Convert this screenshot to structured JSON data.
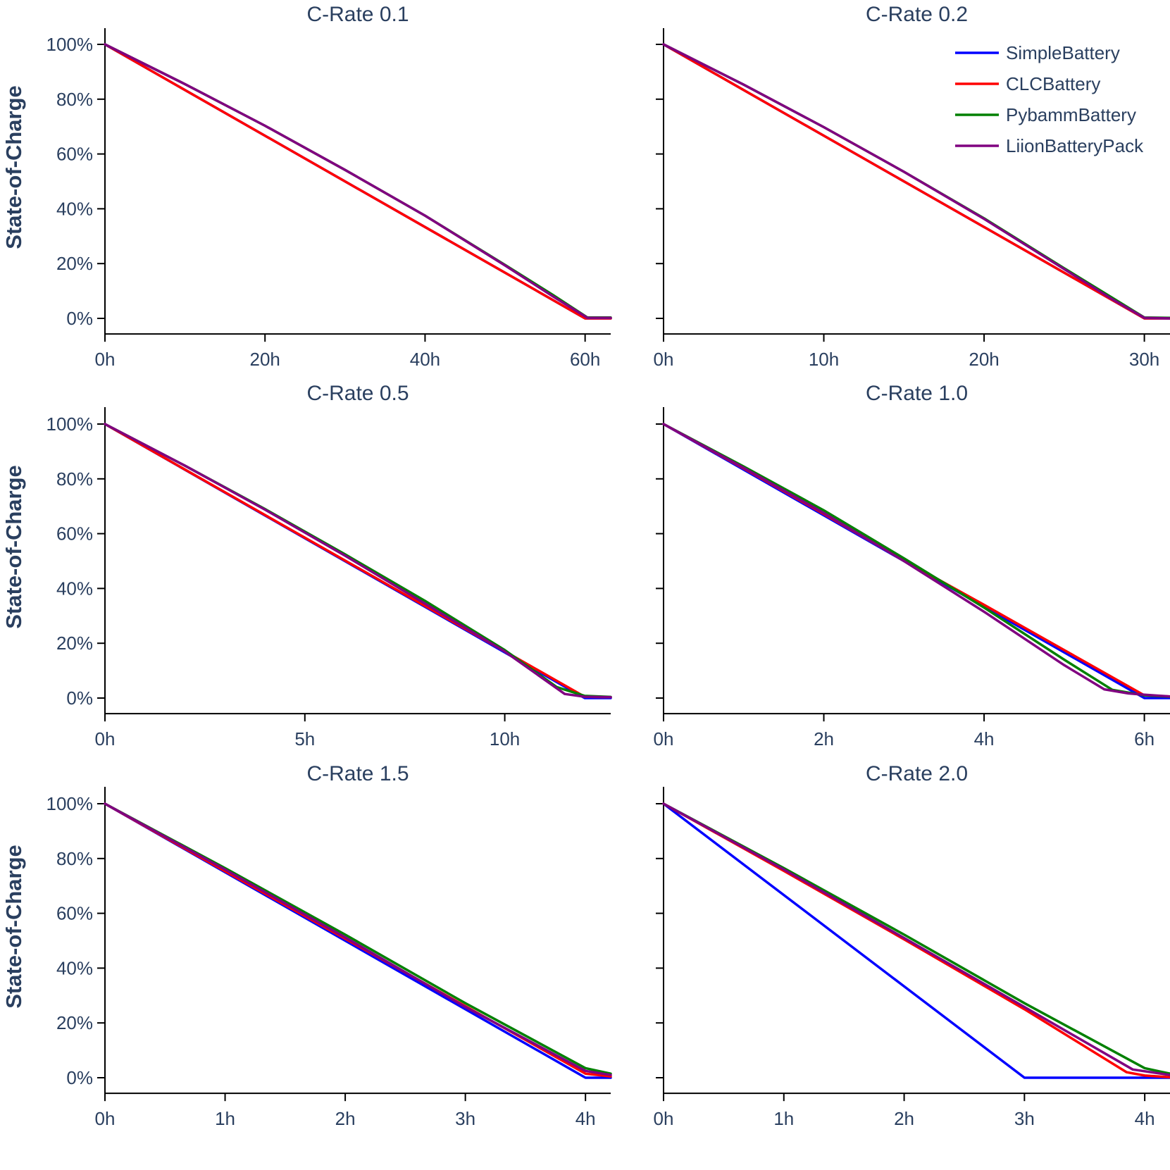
{
  "chart_data": {
    "type": "line",
    "ylabel": "State-of-Charge",
    "legend": {
      "placement": "top-right",
      "entries": [
        {
          "name": "SimpleBattery",
          "color": "#0000ff"
        },
        {
          "name": "CLCBattery",
          "color": "#ff0000"
        },
        {
          "name": "PybammBattery",
          "color": "#008000"
        },
        {
          "name": "LiionBatteryPack",
          "color": "#800080"
        }
      ]
    },
    "yaxis": {
      "range": [
        -0.057,
        1.05
      ],
      "ticks": [
        0,
        0.2,
        0.4,
        0.6,
        0.8,
        1.0
      ],
      "tick_labels": [
        "0%",
        "20%",
        "40%",
        "60%",
        "80%",
        "100%"
      ]
    },
    "panels": [
      {
        "title": "C-Rate 0.1",
        "xlim": [
          0,
          63.2
        ],
        "xticks": [
          0,
          20,
          40,
          60
        ],
        "xtick_labels": [
          "0h",
          "20h",
          "40h",
          "60h"
        ],
        "series": [
          {
            "name": "SimpleBattery",
            "x": [
              0,
              60,
              63.2
            ],
            "y": [
              1.0,
              0.0,
              0.0
            ]
          },
          {
            "name": "CLCBattery",
            "x": [
              0,
              60,
              63.2
            ],
            "y": [
              1.0,
              0.0,
              0.0
            ]
          },
          {
            "name": "PybammBattery",
            "x": [
              0,
              10,
              20,
              30,
              40,
              50,
              56,
              60.3,
              63.2
            ],
            "y": [
              1.0,
              0.855,
              0.703,
              0.542,
              0.375,
              0.195,
              0.085,
              0.003,
              0.003
            ]
          },
          {
            "name": "LiionBatteryPack",
            "x": [
              0,
              10,
              20,
              30,
              40,
              50,
              56,
              60.3,
              63.2
            ],
            "y": [
              1.0,
              0.855,
              0.703,
              0.542,
              0.375,
              0.193,
              0.08,
              0.002,
              0.002
            ]
          }
        ]
      },
      {
        "title": "C-Rate 0.2",
        "xlim": [
          0,
          31.6
        ],
        "xticks": [
          0,
          10,
          20,
          30
        ],
        "xtick_labels": [
          "0h",
          "10h",
          "20h",
          "30h"
        ],
        "series": [
          {
            "name": "SimpleBattery",
            "x": [
              0,
              30,
              31.6
            ],
            "y": [
              1.0,
              0.0,
              0.0
            ]
          },
          {
            "name": "CLCBattery",
            "x": [
              0,
              30,
              31.6
            ],
            "y": [
              1.0,
              0.0,
              0.0
            ]
          },
          {
            "name": "PybammBattery",
            "x": [
              0,
              5,
              10,
              15,
              20,
              25,
              28,
              30,
              31.6
            ],
            "y": [
              1.0,
              0.853,
              0.698,
              0.535,
              0.365,
              0.183,
              0.075,
              0.003,
              0.002
            ]
          },
          {
            "name": "LiionBatteryPack",
            "x": [
              0,
              5,
              10,
              15,
              20,
              25,
              28,
              30,
              31.6
            ],
            "y": [
              1.0,
              0.853,
              0.698,
              0.535,
              0.363,
              0.18,
              0.07,
              0.002,
              0.0
            ]
          }
        ]
      },
      {
        "title": "C-Rate 0.5",
        "xlim": [
          0,
          12.65
        ],
        "xticks": [
          0,
          5,
          10
        ],
        "xtick_labels": [
          "0h",
          "5h",
          "10h"
        ],
        "series": [
          {
            "name": "SimpleBattery",
            "x": [
              0,
              12,
              12.65
            ],
            "y": [
              1.0,
              0.0,
              0.0
            ]
          },
          {
            "name": "CLCBattery",
            "x": [
              0,
              12,
              12.65
            ],
            "y": [
              1.0,
              0.005,
              0.003
            ]
          },
          {
            "name": "PybammBattery",
            "x": [
              0,
              2,
              4,
              6,
              8,
              10,
              11.3,
              12,
              12.65
            ],
            "y": [
              1.0,
              0.848,
              0.69,
              0.525,
              0.355,
              0.175,
              0.04,
              0.008,
              0.004
            ]
          },
          {
            "name": "LiionBatteryPack",
            "x": [
              0,
              2,
              4,
              6,
              8,
              10,
              11.5,
              12,
              12.65
            ],
            "y": [
              1.0,
              0.848,
              0.688,
              0.52,
              0.345,
              0.17,
              0.015,
              0.005,
              0.003
            ]
          }
        ]
      },
      {
        "title": "C-Rate 1.0",
        "xlim": [
          0,
          6.32
        ],
        "xticks": [
          0,
          2,
          4,
          6
        ],
        "xtick_labels": [
          "0h",
          "2h",
          "4h",
          "6h"
        ],
        "series": [
          {
            "name": "SimpleBattery",
            "x": [
              0,
              6,
              6.32
            ],
            "y": [
              1.0,
              0.0,
              0.0
            ]
          },
          {
            "name": "CLCBattery",
            "x": [
              0,
              1,
              2,
              3,
              4,
              5,
              6,
              6.32
            ],
            "y": [
              1.0,
              0.838,
              0.672,
              0.502,
              0.34,
              0.175,
              0.01,
              0.006
            ]
          },
          {
            "name": "PybammBattery",
            "x": [
              0,
              1,
              2,
              3,
              4,
              5,
              5.6,
              6,
              6.32
            ],
            "y": [
              1.0,
              0.845,
              0.685,
              0.51,
              0.33,
              0.14,
              0.03,
              0.01,
              0.005
            ]
          },
          {
            "name": "LiionBatteryPack",
            "x": [
              0,
              1,
              2,
              3,
              4,
              5,
              5.5,
              5.8,
              6,
              6.32
            ],
            "y": [
              1.0,
              0.84,
              0.675,
              0.5,
              0.315,
              0.12,
              0.032,
              0.017,
              0.012,
              0.006
            ]
          }
        ]
      },
      {
        "title": "C-Rate 1.5",
        "xlim": [
          0,
          4.21
        ],
        "xticks": [
          0,
          1,
          2,
          3,
          4
        ],
        "xtick_labels": [
          "0h",
          "1h",
          "2h",
          "3h",
          "4h"
        ],
        "series": [
          {
            "name": "SimpleBattery",
            "x": [
              0,
              4,
              4.21
            ],
            "y": [
              1.0,
              0.0,
              0.0
            ]
          },
          {
            "name": "CLCBattery",
            "x": [
              0,
              4,
              4.21
            ],
            "y": [
              1.0,
              0.015,
              0.005
            ]
          },
          {
            "name": "PybammBattery",
            "x": [
              0,
              1,
              2,
              3,
              4,
              4.21
            ],
            "y": [
              1.0,
              0.765,
              0.522,
              0.272,
              0.035,
              0.015
            ]
          },
          {
            "name": "LiionBatteryPack",
            "x": [
              0,
              1,
              2,
              3,
              4,
              4.21
            ],
            "y": [
              1.0,
              0.76,
              0.512,
              0.258,
              0.025,
              0.01
            ]
          }
        ]
      },
      {
        "title": "C-Rate 2.0",
        "xlim": [
          0,
          4.21
        ],
        "xticks": [
          0,
          1,
          2,
          3,
          4
        ],
        "xtick_labels": [
          "0h",
          "1h",
          "2h",
          "3h",
          "4h"
        ],
        "series": [
          {
            "name": "SimpleBattery",
            "x": [
              0,
              3,
              4.21
            ],
            "y": [
              1.0,
              0.0,
              0.0
            ]
          },
          {
            "name": "CLCBattery",
            "x": [
              0,
              1,
              2,
              3,
              3.85,
              4,
              4.21
            ],
            "y": [
              1.0,
              0.755,
              0.505,
              0.25,
              0.02,
              0.008,
              0.002
            ]
          },
          {
            "name": "PybammBattery",
            "x": [
              0,
              1,
              2,
              3,
              4,
              4.21
            ],
            "y": [
              1.0,
              0.765,
              0.522,
              0.272,
              0.035,
              0.015
            ]
          },
          {
            "name": "LiionBatteryPack",
            "x": [
              0,
              1,
              2,
              3,
              3.9,
              4.21
            ],
            "y": [
              1.0,
              0.76,
              0.51,
              0.258,
              0.03,
              0.01
            ]
          }
        ]
      }
    ]
  }
}
